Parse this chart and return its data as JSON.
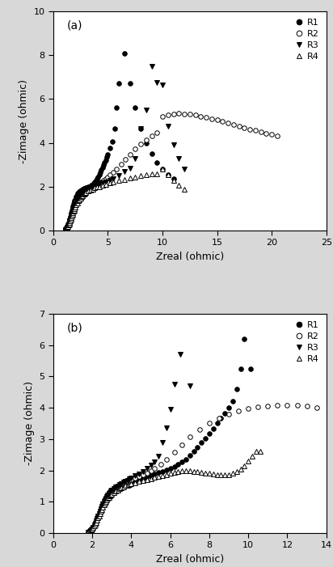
{
  "panel_a": {
    "title": "(a)",
    "xlabel": "Zreal (ohmic)",
    "ylabel": "-Zimage (ohmic)",
    "xlim": [
      0,
      25
    ],
    "ylim": [
      0,
      10
    ],
    "xticks": [
      0,
      5,
      10,
      15,
      20,
      25
    ],
    "yticks": [
      0,
      2,
      4,
      6,
      8,
      10
    ],
    "R1": {
      "zreal": [
        1.1,
        1.15,
        1.2,
        1.25,
        1.3,
        1.35,
        1.4,
        1.45,
        1.5,
        1.55,
        1.6,
        1.65,
        1.7,
        1.75,
        1.8,
        1.85,
        1.9,
        1.95,
        2.0,
        2.05,
        2.1,
        2.15,
        2.2,
        2.25,
        2.3,
        2.35,
        2.4,
        2.45,
        2.5,
        2.6,
        2.7,
        2.8,
        2.9,
        3.0,
        3.1,
        3.2,
        3.3,
        3.4,
        3.5,
        3.6,
        3.7,
        3.8,
        3.9,
        4.0,
        4.1,
        4.2,
        4.3,
        4.4,
        4.5,
        4.6,
        4.7,
        4.8,
        4.9,
        5.0,
        5.2,
        5.4,
        5.6,
        5.8,
        6.0,
        6.5,
        7.0,
        7.5,
        8.0,
        8.5,
        9.0,
        9.5,
        10.0,
        10.5,
        11.0
      ],
      "zimag": [
        0.02,
        0.05,
        0.09,
        0.14,
        0.2,
        0.27,
        0.35,
        0.44,
        0.53,
        0.63,
        0.73,
        0.83,
        0.93,
        1.02,
        1.11,
        1.2,
        1.28,
        1.35,
        1.42,
        1.48,
        1.54,
        1.59,
        1.64,
        1.68,
        1.72,
        1.75,
        1.78,
        1.8,
        1.82,
        1.86,
        1.89,
        1.91,
        1.93,
        1.95,
        1.97,
        1.99,
        2.01,
        2.03,
        2.06,
        2.1,
        2.15,
        2.21,
        2.28,
        2.36,
        2.45,
        2.55,
        2.65,
        2.76,
        2.87,
        2.98,
        3.1,
        3.22,
        3.35,
        3.48,
        3.75,
        4.05,
        4.65,
        5.6,
        6.7,
        8.1,
        6.7,
        5.6,
        4.65,
        4.0,
        3.5,
        3.1,
        2.8,
        2.55,
        2.35
      ]
    },
    "R2": {
      "zreal": [
        1.1,
        1.15,
        1.2,
        1.25,
        1.3,
        1.35,
        1.4,
        1.45,
        1.5,
        1.55,
        1.6,
        1.65,
        1.7,
        1.75,
        1.8,
        1.85,
        1.9,
        1.95,
        2.0,
        2.1,
        2.2,
        2.3,
        2.4,
        2.5,
        2.6,
        2.7,
        2.8,
        2.9,
        3.0,
        3.1,
        3.2,
        3.3,
        3.4,
        3.5,
        3.6,
        3.7,
        3.8,
        3.9,
        4.0,
        4.2,
        4.4,
        4.6,
        4.8,
        5.0,
        5.2,
        5.5,
        5.8,
        6.2,
        6.6,
        7.0,
        7.5,
        8.0,
        8.5,
        9.0,
        9.5,
        10.0,
        10.5,
        11.0,
        11.5,
        12.0,
        12.5,
        13.0,
        13.5,
        14.0,
        14.5,
        15.0,
        15.5,
        16.0,
        16.5,
        17.0,
        17.5,
        18.0,
        18.5,
        19.0,
        19.5,
        20.0,
        20.5
      ],
      "zimag": [
        0.02,
        0.04,
        0.07,
        0.11,
        0.16,
        0.22,
        0.28,
        0.35,
        0.43,
        0.51,
        0.59,
        0.68,
        0.76,
        0.85,
        0.93,
        1.01,
        1.09,
        1.16,
        1.23,
        1.35,
        1.46,
        1.55,
        1.63,
        1.7,
        1.76,
        1.81,
        1.85,
        1.89,
        1.92,
        1.95,
        1.97,
        1.99,
        2.01,
        2.03,
        2.05,
        2.07,
        2.09,
        2.11,
        2.13,
        2.18,
        2.23,
        2.29,
        2.36,
        2.44,
        2.53,
        2.67,
        2.82,
        3.03,
        3.25,
        3.47,
        3.72,
        3.95,
        4.15,
        4.32,
        4.48,
        5.2,
        5.28,
        5.32,
        5.34,
        5.33,
        5.3,
        5.26,
        5.21,
        5.16,
        5.1,
        5.04,
        4.98,
        4.91,
        4.84,
        4.77,
        4.7,
        4.63,
        4.56,
        4.5,
        4.44,
        4.38,
        4.3
      ]
    },
    "R3": {
      "zreal": [
        1.1,
        1.15,
        1.2,
        1.25,
        1.3,
        1.35,
        1.4,
        1.45,
        1.5,
        1.55,
        1.6,
        1.65,
        1.7,
        1.75,
        1.8,
        1.85,
        1.9,
        1.95,
        2.0,
        2.1,
        2.2,
        2.3,
        2.4,
        2.5,
        2.6,
        2.7,
        2.8,
        2.9,
        3.0,
        3.2,
        3.4,
        3.6,
        3.8,
        4.0,
        4.2,
        4.5,
        4.8,
        5.2,
        5.5,
        6.0,
        6.5,
        7.0,
        7.5,
        8.0,
        8.5,
        9.0,
        9.5,
        10.0,
        10.5,
        11.0,
        11.5,
        12.0
      ],
      "zimag": [
        0.02,
        0.04,
        0.07,
        0.11,
        0.16,
        0.22,
        0.28,
        0.35,
        0.43,
        0.51,
        0.59,
        0.68,
        0.76,
        0.85,
        0.93,
        1.01,
        1.09,
        1.16,
        1.23,
        1.35,
        1.46,
        1.55,
        1.63,
        1.7,
        1.76,
        1.81,
        1.85,
        1.89,
        1.92,
        1.97,
        2.01,
        2.05,
        2.08,
        2.11,
        2.14,
        2.18,
        2.23,
        2.3,
        2.36,
        2.5,
        2.68,
        2.85,
        3.3,
        4.65,
        5.5,
        7.5,
        6.75,
        6.65,
        4.75,
        3.9,
        3.3,
        2.8
      ]
    },
    "R4": {
      "zreal": [
        1.1,
        1.15,
        1.2,
        1.25,
        1.3,
        1.35,
        1.4,
        1.45,
        1.5,
        1.55,
        1.6,
        1.65,
        1.7,
        1.75,
        1.8,
        1.85,
        1.9,
        1.95,
        2.0,
        2.1,
        2.2,
        2.3,
        2.4,
        2.5,
        2.6,
        2.7,
        2.8,
        2.9,
        3.0,
        3.2,
        3.4,
        3.6,
        3.8,
        4.0,
        4.2,
        4.5,
        4.8,
        5.2,
        5.5,
        6.0,
        6.5,
        7.0,
        7.5,
        8.0,
        8.5,
        9.0,
        9.5,
        10.0,
        10.5,
        11.0,
        11.5,
        12.0
      ],
      "zimag": [
        0.02,
        0.04,
        0.06,
        0.09,
        0.13,
        0.18,
        0.24,
        0.3,
        0.37,
        0.44,
        0.51,
        0.58,
        0.66,
        0.73,
        0.8,
        0.87,
        0.94,
        1.0,
        1.06,
        1.17,
        1.26,
        1.35,
        1.42,
        1.49,
        1.55,
        1.6,
        1.65,
        1.69,
        1.73,
        1.79,
        1.85,
        1.9,
        1.94,
        1.98,
        2.01,
        2.05,
        2.1,
        2.16,
        2.21,
        2.28,
        2.34,
        2.4,
        2.45,
        2.5,
        2.54,
        2.57,
        2.6,
        2.8,
        2.55,
        2.28,
        2.05,
        1.9
      ]
    }
  },
  "panel_b": {
    "title": "(b)",
    "xlabel": "Zreal (ohmic)",
    "ylabel": "-Zimage (ohmic)",
    "xlim": [
      0,
      14
    ],
    "ylim": [
      0,
      7
    ],
    "xticks": [
      0,
      2,
      4,
      6,
      8,
      10,
      12,
      14
    ],
    "yticks": [
      0,
      1,
      2,
      3,
      4,
      5,
      6,
      7
    ],
    "R1": {
      "zreal": [
        1.8,
        1.85,
        1.9,
        1.95,
        2.0,
        2.05,
        2.1,
        2.15,
        2.2,
        2.25,
        2.3,
        2.35,
        2.4,
        2.45,
        2.5,
        2.55,
        2.6,
        2.65,
        2.7,
        2.75,
        2.8,
        2.85,
        2.9,
        2.95,
        3.0,
        3.1,
        3.2,
        3.3,
        3.4,
        3.5,
        3.6,
        3.7,
        3.8,
        3.9,
        4.0,
        4.1,
        4.2,
        4.3,
        4.4,
        4.5,
        4.6,
        4.7,
        4.8,
        4.9,
        5.0,
        5.2,
        5.4,
        5.6,
        5.8,
        6.0,
        6.2,
        6.4,
        6.6,
        6.8,
        7.0,
        7.2,
        7.4,
        7.6,
        7.8,
        8.0,
        8.2,
        8.4,
        8.6,
        8.8,
        9.0,
        9.2,
        9.4,
        9.6,
        9.8,
        10.1
      ],
      "zimag": [
        0.02,
        0.04,
        0.07,
        0.1,
        0.14,
        0.19,
        0.25,
        0.31,
        0.38,
        0.46,
        0.54,
        0.62,
        0.7,
        0.78,
        0.86,
        0.93,
        1.0,
        1.06,
        1.12,
        1.17,
        1.22,
        1.26,
        1.3,
        1.33,
        1.36,
        1.41,
        1.45,
        1.49,
        1.52,
        1.55,
        1.57,
        1.59,
        1.61,
        1.63,
        1.65,
        1.67,
        1.69,
        1.71,
        1.73,
        1.75,
        1.77,
        1.79,
        1.81,
        1.83,
        1.85,
        1.89,
        1.93,
        1.97,
        2.01,
        2.06,
        2.12,
        2.19,
        2.27,
        2.36,
        2.47,
        2.6,
        2.74,
        2.88,
        3.03,
        3.18,
        3.34,
        3.5,
        3.66,
        3.82,
        4.0,
        4.2,
        4.6,
        5.25,
        6.2,
        5.25
      ]
    },
    "R2": {
      "zreal": [
        1.8,
        1.85,
        1.9,
        1.95,
        2.0,
        2.05,
        2.1,
        2.15,
        2.2,
        2.25,
        2.3,
        2.35,
        2.4,
        2.45,
        2.5,
        2.55,
        2.6,
        2.65,
        2.7,
        2.75,
        2.8,
        2.85,
        2.9,
        2.95,
        3.0,
        3.1,
        3.2,
        3.3,
        3.4,
        3.5,
        3.6,
        3.7,
        3.8,
        3.9,
        4.0,
        4.2,
        4.4,
        4.6,
        4.8,
        5.0,
        5.2,
        5.5,
        5.8,
        6.2,
        6.6,
        7.0,
        7.5,
        8.0,
        8.5,
        9.0,
        9.5,
        10.0,
        10.5,
        11.0,
        11.5,
        12.0,
        12.5,
        13.0,
        13.5
      ],
      "zimag": [
        0.02,
        0.04,
        0.07,
        0.1,
        0.14,
        0.19,
        0.25,
        0.31,
        0.38,
        0.46,
        0.54,
        0.62,
        0.7,
        0.78,
        0.86,
        0.93,
        1.0,
        1.06,
        1.12,
        1.17,
        1.22,
        1.26,
        1.3,
        1.33,
        1.36,
        1.41,
        1.46,
        1.5,
        1.54,
        1.57,
        1.6,
        1.63,
        1.65,
        1.68,
        1.7,
        1.75,
        1.8,
        1.86,
        1.92,
        1.99,
        2.07,
        2.2,
        2.35,
        2.58,
        2.82,
        3.07,
        3.3,
        3.5,
        3.67,
        3.8,
        3.9,
        3.97,
        4.02,
        4.05,
        4.07,
        4.08,
        4.07,
        4.05,
        4.0
      ]
    },
    "R3": {
      "zreal": [
        1.8,
        1.85,
        1.9,
        1.95,
        2.0,
        2.05,
        2.1,
        2.15,
        2.2,
        2.25,
        2.3,
        2.35,
        2.4,
        2.45,
        2.5,
        2.55,
        2.6,
        2.65,
        2.7,
        2.75,
        2.8,
        2.85,
        2.9,
        2.95,
        3.0,
        3.1,
        3.2,
        3.3,
        3.4,
        3.5,
        3.6,
        3.7,
        3.8,
        3.9,
        4.0,
        4.2,
        4.4,
        4.6,
        4.8,
        5.0,
        5.2,
        5.4,
        5.6,
        5.8,
        6.0,
        6.2,
        6.5,
        7.0
      ],
      "zimag": [
        0.02,
        0.04,
        0.07,
        0.1,
        0.14,
        0.19,
        0.25,
        0.31,
        0.38,
        0.46,
        0.54,
        0.62,
        0.7,
        0.78,
        0.86,
        0.93,
        1.0,
        1.06,
        1.12,
        1.17,
        1.22,
        1.26,
        1.3,
        1.33,
        1.36,
        1.41,
        1.46,
        1.5,
        1.54,
        1.58,
        1.62,
        1.65,
        1.68,
        1.72,
        1.75,
        1.82,
        1.89,
        1.97,
        2.06,
        2.16,
        2.28,
        2.45,
        2.88,
        3.35,
        3.95,
        4.75,
        5.7,
        4.7
      ]
    },
    "R4": {
      "zreal": [
        1.8,
        1.85,
        1.9,
        1.95,
        2.0,
        2.05,
        2.1,
        2.15,
        2.2,
        2.25,
        2.3,
        2.35,
        2.4,
        2.45,
        2.5,
        2.55,
        2.6,
        2.65,
        2.7,
        2.75,
        2.8,
        2.85,
        2.9,
        2.95,
        3.0,
        3.1,
        3.2,
        3.3,
        3.4,
        3.5,
        3.6,
        3.7,
        3.8,
        3.9,
        4.0,
        4.2,
        4.4,
        4.6,
        4.8,
        5.0,
        5.2,
        5.4,
        5.6,
        5.8,
        6.0,
        6.2,
        6.4,
        6.6,
        6.8,
        7.0,
        7.2,
        7.4,
        7.6,
        7.8,
        8.0,
        8.2,
        8.4,
        8.6,
        8.8,
        9.0,
        9.2,
        9.4,
        9.6,
        9.8,
        10.0,
        10.2,
        10.4,
        10.6
      ],
      "zimag": [
        0.02,
        0.04,
        0.06,
        0.09,
        0.13,
        0.17,
        0.22,
        0.28,
        0.34,
        0.41,
        0.48,
        0.55,
        0.62,
        0.69,
        0.76,
        0.83,
        0.89,
        0.95,
        1.01,
        1.06,
        1.1,
        1.14,
        1.18,
        1.21,
        1.24,
        1.29,
        1.34,
        1.38,
        1.42,
        1.45,
        1.48,
        1.51,
        1.53,
        1.55,
        1.57,
        1.61,
        1.65,
        1.68,
        1.71,
        1.74,
        1.77,
        1.8,
        1.83,
        1.86,
        1.9,
        1.94,
        1.97,
        2.0,
        2.0,
        1.99,
        1.97,
        1.95,
        1.93,
        1.91,
        1.9,
        1.88,
        1.87,
        1.86,
        1.86,
        1.87,
        1.9,
        1.95,
        2.03,
        2.15,
        2.3,
        2.45,
        2.62,
        2.6
      ]
    }
  },
  "legend": {
    "R1": {
      "marker": "o",
      "facecolor": "black",
      "edgecolor": "black",
      "label": "R1"
    },
    "R2": {
      "marker": "o",
      "facecolor": "white",
      "edgecolor": "black",
      "label": "R2"
    },
    "R3": {
      "marker": "v",
      "facecolor": "black",
      "edgecolor": "black",
      "label": "R3"
    },
    "R4": {
      "marker": "^",
      "facecolor": "white",
      "edgecolor": "black",
      "label": "R4"
    }
  },
  "markersize": 4,
  "background_color": "#ffffff",
  "figure_facecolor": "#d8d8d8"
}
